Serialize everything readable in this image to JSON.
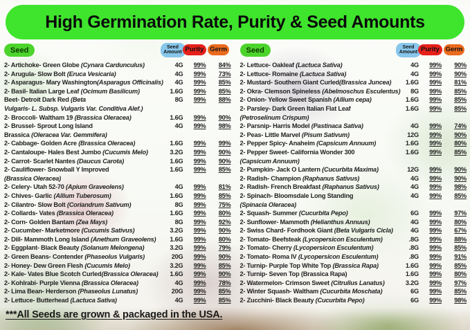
{
  "title": "High Germination Rate, Purity & Seed Amounts",
  "footer": "***All Seeds are grown & packaged in the USA.",
  "badges": {
    "seed": "Seed",
    "seed_amount": "Seed Amount",
    "purity": "Purity",
    "germ": "Germ"
  },
  "colors": {
    "banner_green": "#3fe42d",
    "seed_badge_green": "#4cd42c",
    "amount_badge_blue": "#88c7eb",
    "purity_badge_red": "#e6201a",
    "germ_badge_orange": "#ea6a1e",
    "text": "#222222"
  },
  "tables": [
    {
      "rows": [
        {
          "name": "2- Artichoke- Green Globe ",
          "sci": "(Cynara Cardunculus)",
          "amount": "4G",
          "purity": "99%",
          "germ": "84%"
        },
        {
          "name": "2- Arugula- Slow Bolt ",
          "sci": "(Eruca Vesicaria)",
          "amount": "4G",
          "purity": "99%",
          "germ": "73%"
        },
        {
          "name": "2- Asparagus- Mary Washington",
          "sci": "(Asparagus Officinalis)",
          "amount": "4G",
          "purity": "99%",
          "germ": "85%"
        },
        {
          "name": "2- Basil- Italian Large Leaf ",
          "sci": "(Ocimum Basilicum)",
          "amount": "1.6G",
          "purity": "99%",
          "germ": "85%"
        },
        {
          "name": "Beet- Detroit Dark Red ",
          "sci": "(Beta",
          "name2": "",
          "sci2": "Vulgaris- L. Subsp. Vulgaris Var. Conditiva Alef.)",
          "amount": "8G",
          "purity": "99%",
          "germ": "88%"
        },
        {
          "name": "2- Broccoli- Waltham 19 ",
          "sci": "(Brassica Oleracea)",
          "amount": "1.6G",
          "purity": "99%",
          "germ": "90%"
        },
        {
          "name": "2- Brussel- Sprout Long Island",
          "sci": "",
          "name2": "Brassica ",
          "sci2": "(Oleracea Var. Gemmifera)",
          "amount": "4G",
          "purity": "99%",
          "germ": "98%"
        },
        {
          "name": "2- Cabbage- Golden Acre ",
          "sci": "(Brassica Oleracea)",
          "amount": "1.6G",
          "purity": "99%",
          "germ": "99%"
        },
        {
          "name": "2- Cantaloupe- Hales Best Jumbo ",
          "sci": "(Cucumis Melo)",
          "amount": "3.2G",
          "purity": "99%",
          "germ": "90%"
        },
        {
          "name": "2- Carrot- Scarlet Nantes ",
          "sci": "(Daucus Carota)",
          "amount": "1.6G",
          "purity": "99%",
          "germ": "90%"
        },
        {
          "name": "2- Cauliflower- Snowball Y Improved",
          "sci": "",
          "name2": "",
          "sci2": "(Brassica Oleracea)",
          "amount": "1.6G",
          "purity": "99%",
          "germ": "85%"
        },
        {
          "name": "2- Celery- Utah 52-70 ",
          "sci": "(Apium Graveolens)",
          "amount": "4G",
          "purity": "99%",
          "germ": "81%"
        },
        {
          "name": "2- Chives- Garlic ",
          "sci": "(Allium Tuberosum)",
          "amount": "1.6G",
          "purity": "99%",
          "germ": "85%"
        },
        {
          "name": "2- Cilantro- Slow Bolt ",
          "sci": "(Coriandrum Sativum)",
          "amount": "8G",
          "purity": "99%",
          "germ": "75%"
        },
        {
          "name": "2- Collards- Vates ",
          "sci": "(Brassica Oleracea)",
          "amount": "1.6G",
          "purity": "99%",
          "germ": "80%"
        },
        {
          "name": "2- Corn- Golden Bantam ",
          "sci": "(Zea Mays)",
          "amount": "8G",
          "purity": "99%",
          "germ": "92%"
        },
        {
          "name": "2- Cucumber- Marketmore ",
          "sci": "(Cucumis Sativus)",
          "amount": "3.2G",
          "purity": "99%",
          "germ": "90%"
        },
        {
          "name": "2- Dill- Mammoth Long Island ",
          "sci": "(Anethum Graveolens)",
          "amount": "1.6G",
          "purity": "99%",
          "germ": "80%"
        },
        {
          "name": "2- Eggplant- Black Beauty ",
          "sci": "(Solanum Melongena)",
          "amount": "3.2G",
          "purity": "99%",
          "germ": "79%"
        },
        {
          "name": "2- Green Beans- Contender ",
          "sci": "(Phaseolus Vulgaris)",
          "amount": "20G",
          "purity": "99%",
          "germ": "90%"
        },
        {
          "name": "2- Honey- Dew Green Flesh ",
          "sci": "(Cucumis Melo)",
          "amount": "3.2G",
          "purity": "99%",
          "germ": "85%"
        },
        {
          "name": "2- Kale- Vates Blue Scotch Curled",
          "sci": "(Brassica Oleracea)",
          "amount": "1.6G",
          "purity": "99%",
          "germ": "90%"
        },
        {
          "name": "2- Kohlrabi- Purple Vienna ",
          "sci": "(Brassica Oleracea)",
          "amount": "4G",
          "purity": "99%",
          "germ": "78%"
        },
        {
          "name": "2- Lima Bean- Herderson ",
          "sci": "(Phaseolus Lunatus)",
          "amount": "20G",
          "purity": "99%",
          "germ": "85%"
        },
        {
          "name": "2- Lettuce- Butterhead ",
          "sci": "(Lactuca Sativa)",
          "amount": "4G",
          "purity": "99%",
          "germ": "85%"
        }
      ]
    },
    {
      "rows": [
        {
          "name": "2- Lettuce- Oakleaf ",
          "sci": "(Lactuca Sativa)",
          "amount": "4G",
          "purity": "99%",
          "germ": "90%"
        },
        {
          "name": "2- Lettuce- Romaine ",
          "sci": "(Lactuca Sativa)",
          "amount": "4G",
          "purity": "99%",
          "germ": "90%"
        },
        {
          "name": "2- Mustard- Southern Giant Curled",
          "sci": "(Brassica Juncea)",
          "amount": "1.6G",
          "purity": "99%",
          "germ": "81%"
        },
        {
          "name": "2- Okra- Clemson Spineless ",
          "sci": "(Abelmoschus Esculentus)",
          "amount": "8G",
          "purity": "99%",
          "germ": "85%"
        },
        {
          "name": "2- Onion- Yellow Sweet Spanish ",
          "sci": "(Allium cepa)",
          "amount": "1.6G",
          "purity": "99%",
          "germ": "85%"
        },
        {
          "name": "2- Parsley- Dark Green Italian Flat Leaf",
          "sci": "",
          "name2": "",
          "sci2": "(Petroselinum Crispum)",
          "amount": "1.6G",
          "purity": "99%",
          "germ": "85%"
        },
        {
          "name": "2- Parsnip- Harris Model ",
          "sci": "(Pastinaca Sativa)",
          "amount": "4G",
          "purity": "99%",
          "germ": "74%"
        },
        {
          "name": "2- Peas- Little Marvel ",
          "sci": "(Pisum Sativum)",
          "amount": "12G",
          "purity": "99%",
          "germ": "90%"
        },
        {
          "name": "2- Pepper Spicy- Anaheim ",
          "sci": "(Capsicum Annuum)",
          "amount": "1.6G",
          "purity": "99%",
          "germ": "80%"
        },
        {
          "name": "2- Pepper Sweet- California Wonder 300",
          "sci": "",
          "name2": "",
          "sci2": "(Capsicum Annuum)",
          "amount": "1.6G",
          "purity": "99%",
          "germ": "85%"
        },
        {
          "name": "2- Pumpkin- Jack O Lantern ",
          "sci": "(Cucurbita Maxima)",
          "amount": "12G",
          "purity": "99%",
          "germ": "90%"
        },
        {
          "name": "2- Radish- Champion ",
          "sci": "(Raphanus Sativus)",
          "amount": "4G",
          "purity": "99%",
          "germ": "90%"
        },
        {
          "name": "2- Radish- French Breakfast ",
          "sci": "(Raphanus Sativus)",
          "amount": "4G",
          "purity": "99%",
          "germ": "98%"
        },
        {
          "name": "2- Spinach- Bloomsdale Long Standing",
          "sci": "",
          "name2": "",
          "sci2": "(Spinacia Oleracea)",
          "amount": "4G",
          "purity": "99%",
          "germ": "85%"
        },
        {
          "name": "2- Squash- Summer ",
          "sci": "(Cucurbita Pepo)",
          "amount": "6G",
          "purity": "99%",
          "germ": "97%"
        },
        {
          "name": "2- Sunflower- Mammoth ",
          "sci": "(Helianthus Annuus)",
          "amount": "4G",
          "purity": "99%",
          "germ": "80%"
        },
        {
          "name": "2- Swiss Chard- Fordhook Giant ",
          "sci": "(Beta Vulgaris Cicla)",
          "amount": "4G",
          "purity": "99%",
          "germ": "67%"
        },
        {
          "name": "2- Tomato- Beefsteak ",
          "sci": "(Lycopersicon Esculentum)",
          "amount": ".8G",
          "purity": "99%",
          "germ": "88%"
        },
        {
          "name": "2- Tomato- Cherry ",
          "sci": "(Lycopersicon Esculentum)",
          "amount": ".8G",
          "purity": "99%",
          "germ": "85%"
        },
        {
          "name": "2- Tomato- Roma IV ",
          "sci": "(Lycopersicon Esculentum)",
          "amount": ".8G",
          "purity": "99%",
          "germ": "91%"
        },
        {
          "name": "2- Turnip- Purple Top White Top ",
          "sci": "(Brassica Rapa)",
          "amount": "1.6G",
          "purity": "99%",
          "germ": "85%"
        },
        {
          "name": "2- Turnip- Seven Top (Brassica Rapa)",
          "sci": "",
          "amount": "1.6G",
          "purity": "99%",
          "germ": "80%"
        },
        {
          "name": "2- Watermelon- Crimson Sweet ",
          "sci": "(Citrullus Lanatus)",
          "amount": "3.2G",
          "purity": "99%",
          "germ": "97%"
        },
        {
          "name": "2- Winter Squash- Waltham ",
          "sci": "(Cucurbita Moschata)",
          "amount": "6G",
          "purity": "99%",
          "germ": "85%"
        },
        {
          "name": "2- Zucchini- Black Beauty ",
          "sci": "(Cucurbita Pepo)",
          "amount": "6G",
          "purity": "99%",
          "germ": "98%"
        }
      ]
    }
  ]
}
